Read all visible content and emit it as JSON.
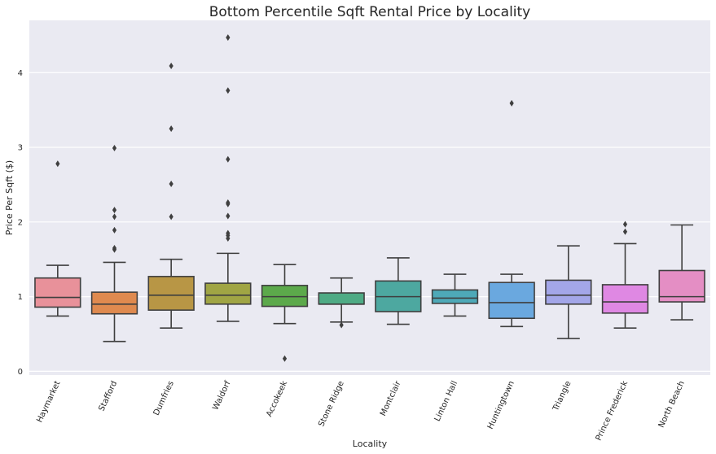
{
  "chart_data": {
    "type": "box",
    "title": "Bottom Percentile Sqft Rental Price by Locality",
    "xlabel": "Locality",
    "ylabel": "Price Per Sqft ($)",
    "ylim": [
      -0.05,
      4.7
    ],
    "yticks": [
      "0",
      "1",
      "2",
      "3",
      "4"
    ],
    "grid": true,
    "categories": [
      "Haymarket",
      "Stafford",
      "Dumfries",
      "Waldorf",
      "Accokeek",
      "Stone Ridge",
      "Montclair",
      "Linton Hall",
      "Huntingtown",
      "Triangle",
      "Prince Frederick",
      "North Beach"
    ],
    "colors": [
      "#e8919a",
      "#df8a4f",
      "#b89645",
      "#a0a544",
      "#5ca94b",
      "#4fab85",
      "#4da8a0",
      "#4ea9b8",
      "#6aa8df",
      "#a3a6e8",
      "#df88e3",
      "#e48ec4"
    ],
    "boxes": [
      {
        "whisker_low": 0.74,
        "q1": 0.86,
        "median": 0.99,
        "q3": 1.25,
        "whisker_high": 1.42,
        "outliers": [
          2.78
        ]
      },
      {
        "whisker_low": 0.4,
        "q1": 0.77,
        "median": 0.9,
        "q3": 1.06,
        "whisker_high": 1.46,
        "outliers": [
          1.63,
          1.65,
          1.89,
          2.07,
          2.16,
          2.99
        ]
      },
      {
        "whisker_low": 0.58,
        "q1": 0.82,
        "median": 1.02,
        "q3": 1.27,
        "whisker_high": 1.5,
        "outliers": [
          2.07,
          2.51,
          3.25,
          4.09
        ]
      },
      {
        "whisker_low": 0.67,
        "q1": 0.9,
        "median": 1.02,
        "q3": 1.18,
        "whisker_high": 1.58,
        "outliers": [
          1.78,
          1.82,
          1.85,
          2.08,
          2.24,
          2.26,
          2.84,
          3.76,
          4.47
        ]
      },
      {
        "whisker_low": 0.64,
        "q1": 0.87,
        "median": 1.0,
        "q3": 1.15,
        "whisker_high": 1.43,
        "outliers": [
          0.17
        ]
      },
      {
        "whisker_low": 0.66,
        "q1": 0.9,
        "median": 0.9,
        "q3": 1.05,
        "whisker_high": 1.25,
        "outliers": [
          0.62
        ]
      },
      {
        "whisker_low": 0.63,
        "q1": 0.8,
        "median": 1.0,
        "q3": 1.21,
        "whisker_high": 1.52,
        "outliers": []
      },
      {
        "whisker_low": 0.74,
        "q1": 0.91,
        "median": 0.98,
        "q3": 1.09,
        "whisker_high": 1.3,
        "outliers": []
      },
      {
        "whisker_low": 0.6,
        "q1": 0.71,
        "median": 0.92,
        "q3": 1.19,
        "whisker_high": 1.3,
        "outliers": [
          3.59
        ]
      },
      {
        "whisker_low": 0.44,
        "q1": 0.9,
        "median": 1.02,
        "q3": 1.22,
        "whisker_high": 1.68,
        "outliers": []
      },
      {
        "whisker_low": 0.58,
        "q1": 0.78,
        "median": 0.93,
        "q3": 1.16,
        "whisker_high": 1.71,
        "outliers": [
          1.87,
          1.97
        ]
      },
      {
        "whisker_low": 0.69,
        "q1": 0.93,
        "median": 1.0,
        "q3": 1.35,
        "whisker_high": 1.96,
        "outliers": []
      }
    ]
  }
}
